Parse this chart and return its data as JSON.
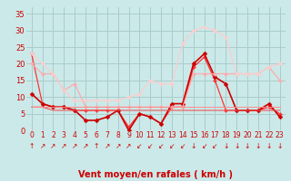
{
  "xlabel": "Vent moyen/en rafales ( km/h )",
  "background_color": "#cbe9e9",
  "grid_color": "#aacccc",
  "x_ticks": [
    0,
    1,
    2,
    3,
    4,
    5,
    6,
    7,
    8,
    9,
    10,
    11,
    12,
    13,
    14,
    15,
    16,
    17,
    18,
    19,
    20,
    21,
    22,
    23
  ],
  "ylim": [
    0,
    37
  ],
  "yticks": [
    0,
    5,
    10,
    15,
    20,
    25,
    30,
    35
  ],
  "lines": [
    {
      "y": [
        23,
        8,
        7,
        7,
        6,
        6,
        6,
        6,
        6,
        1,
        5,
        4,
        2,
        7,
        7,
        19,
        22,
        15,
        6,
        6,
        6,
        6,
        7,
        5
      ],
      "color": "#ff3333",
      "lw": 0.9,
      "marker": "D",
      "ms": 2.0
    },
    {
      "y": [
        11,
        8,
        7,
        7,
        6,
        3,
        3,
        4,
        6,
        0,
        5,
        4,
        2,
        8,
        8,
        20,
        23,
        16,
        14,
        6,
        6,
        6,
        8,
        4
      ],
      "color": "#cc0000",
      "lw": 1.2,
      "marker": "D",
      "ms": 2.5
    },
    {
      "y": [
        20,
        17,
        17,
        12,
        14,
        7,
        7,
        7,
        7,
        7,
        7,
        7,
        7,
        7,
        7,
        17,
        17,
        17,
        17,
        17,
        17,
        17,
        19,
        15
      ],
      "color": "#ffaaaa",
      "lw": 0.9,
      "marker": "D",
      "ms": 2.0
    },
    {
      "y": [
        23,
        20,
        17,
        12,
        9,
        9,
        9,
        9,
        9,
        10,
        11,
        15,
        14,
        14,
        26,
        30,
        31,
        30,
        28,
        17,
        17,
        17,
        19,
        20
      ],
      "color": "#ffcccc",
      "lw": 0.9,
      "marker": "D",
      "ms": 2.0
    },
    {
      "y": [
        7,
        7,
        6,
        6,
        6,
        6,
        6,
        6,
        6,
        6,
        6,
        6,
        6,
        6,
        6,
        6,
        6,
        6,
        6,
        6,
        6,
        6,
        6,
        6
      ],
      "color": "#ee5555",
      "lw": 0.8,
      "marker": null,
      "ms": 0
    },
    {
      "y": [
        7,
        7,
        7,
        7,
        7,
        7,
        7,
        7,
        7,
        7,
        7,
        7,
        7,
        7,
        7,
        7,
        7,
        7,
        7,
        7,
        7,
        7,
        7,
        7
      ],
      "color": "#ff8888",
      "lw": 0.7,
      "marker": null,
      "ms": 0
    }
  ],
  "arrow_symbols": [
    "↑",
    "↗",
    "↗",
    "↗",
    "↗",
    "↗",
    "↑",
    "↗",
    "↗",
    "↗",
    "↙",
    "↙",
    "↙",
    "↙",
    "↙",
    "↓",
    "↙",
    "↙",
    "↓",
    "↓",
    "↓",
    "↓",
    "↓",
    "↓"
  ],
  "tick_label_color": "#cc0000",
  "axis_label_color": "#cc0000",
  "tick_fontsize": 5.5,
  "ylabel_fontsize": 7.0,
  "arrow_fontsize": 5.5
}
